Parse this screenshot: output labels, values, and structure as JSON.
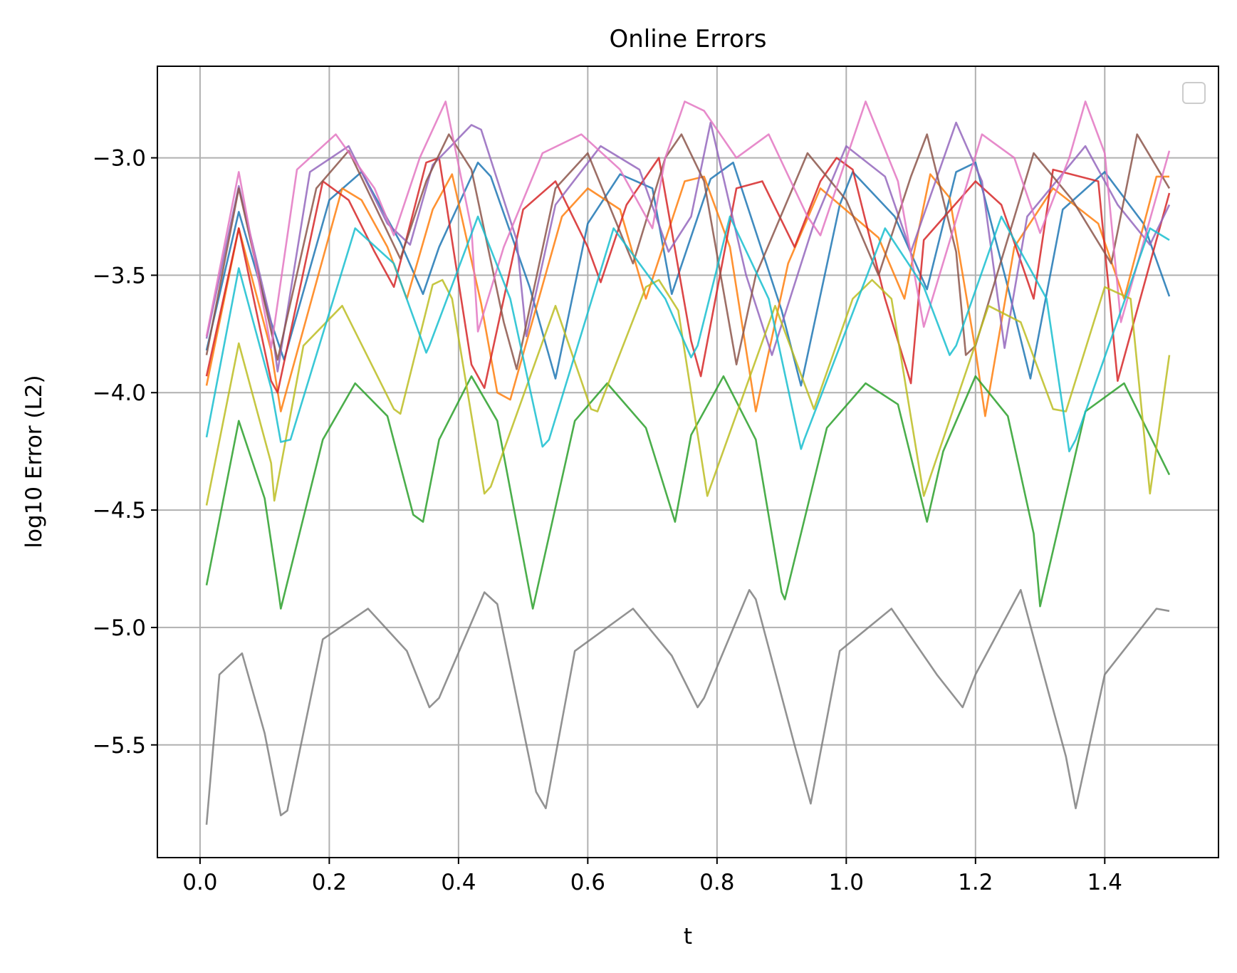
{
  "chart_data": {
    "type": "line",
    "title": "Online Errors",
    "xlabel": "t",
    "ylabel": "log10 Error (L2)",
    "xlim": [
      -0.066,
      1.576
    ],
    "ylim": [
      -5.98,
      -2.61
    ],
    "xticks": [
      0.0,
      0.2,
      0.4,
      0.6,
      0.8,
      1.0,
      1.2,
      1.4
    ],
    "xtick_labels": [
      "0.0",
      "0.2",
      "0.4",
      "0.6",
      "0.8",
      "1.0",
      "1.2",
      "1.4"
    ],
    "yticks": [
      -3.0,
      -3.5,
      -4.0,
      -4.5,
      -5.0,
      -5.5
    ],
    "ytick_labels": [
      "−3.0",
      "−3.5",
      "−4.0",
      "−4.5",
      "−5.0",
      "−5.5"
    ],
    "grid": true,
    "legend": {
      "placement": "top-right",
      "entries": []
    },
    "series": [
      {
        "color": "#1f77b4",
        "x": [
          0.01,
          0.06,
          0.11,
          0.13,
          0.2,
          0.25,
          0.31,
          0.345,
          0.37,
          0.43,
          0.45,
          0.51,
          0.55,
          0.6,
          0.65,
          0.7,
          0.73,
          0.79,
          0.825,
          0.9,
          0.93,
          0.99,
          1.01,
          1.075,
          1.125,
          1.17,
          1.2,
          1.25,
          1.285,
          1.335,
          1.4,
          1.46,
          1.5
        ],
        "y": [
          -3.82,
          -3.23,
          -3.7,
          -3.86,
          -3.18,
          -3.06,
          -3.36,
          -3.58,
          -3.38,
          -3.02,
          -3.08,
          -3.55,
          -3.94,
          -3.28,
          -3.07,
          -3.13,
          -3.58,
          -3.09,
          -3.02,
          -3.65,
          -3.97,
          -3.2,
          -3.06,
          -3.25,
          -3.56,
          -3.06,
          -3.02,
          -3.55,
          -3.94,
          -3.22,
          -3.06,
          -3.28,
          -3.59
        ]
      },
      {
        "color": "#ff7f0e",
        "x": [
          0.01,
          0.06,
          0.11,
          0.125,
          0.22,
          0.25,
          0.29,
          0.32,
          0.36,
          0.39,
          0.435,
          0.46,
          0.48,
          0.56,
          0.6,
          0.65,
          0.69,
          0.75,
          0.78,
          0.82,
          0.86,
          0.91,
          0.96,
          1.05,
          1.09,
          1.13,
          1.16,
          1.2,
          1.215,
          1.26,
          1.32,
          1.39,
          1.43,
          1.48,
          1.5
        ],
        "y": [
          -3.97,
          -3.3,
          -3.82,
          -4.08,
          -3.13,
          -3.18,
          -3.38,
          -3.6,
          -3.22,
          -3.07,
          -3.62,
          -4.0,
          -4.03,
          -3.25,
          -3.13,
          -3.22,
          -3.6,
          -3.1,
          -3.08,
          -3.38,
          -4.08,
          -3.45,
          -3.13,
          -3.34,
          -3.6,
          -3.07,
          -3.17,
          -3.82,
          -4.1,
          -3.38,
          -3.13,
          -3.28,
          -3.6,
          -3.08,
          -3.08
        ]
      },
      {
        "color": "#2ca02c",
        "x": [
          0.01,
          0.06,
          0.1,
          0.12,
          0.125,
          0.19,
          0.24,
          0.29,
          0.33,
          0.345,
          0.37,
          0.42,
          0.46,
          0.51,
          0.515,
          0.58,
          0.63,
          0.69,
          0.735,
          0.76,
          0.81,
          0.86,
          0.9,
          0.905,
          0.97,
          1.03,
          1.08,
          1.125,
          1.15,
          1.2,
          1.25,
          1.29,
          1.3,
          1.37,
          1.43,
          1.5
        ],
        "y": [
          -4.82,
          -4.12,
          -4.45,
          -4.82,
          -4.92,
          -4.2,
          -3.96,
          -4.1,
          -4.52,
          -4.55,
          -4.2,
          -3.93,
          -4.12,
          -4.85,
          -4.92,
          -4.12,
          -3.96,
          -4.15,
          -4.55,
          -4.18,
          -3.93,
          -4.2,
          -4.85,
          -4.88,
          -4.15,
          -3.96,
          -4.05,
          -4.55,
          -4.25,
          -3.93,
          -4.1,
          -4.6,
          -4.91,
          -4.08,
          -3.96,
          -4.35
        ]
      },
      {
        "color": "#d62728",
        "x": [
          0.01,
          0.06,
          0.11,
          0.12,
          0.19,
          0.23,
          0.27,
          0.3,
          0.35,
          0.37,
          0.42,
          0.44,
          0.5,
          0.55,
          0.6,
          0.62,
          0.66,
          0.71,
          0.76,
          0.775,
          0.83,
          0.87,
          0.92,
          0.96,
          0.985,
          1.01,
          1.06,
          1.1,
          1.12,
          1.2,
          1.24,
          1.29,
          1.32,
          1.39,
          1.42,
          1.5
        ],
        "y": [
          -3.93,
          -3.3,
          -3.95,
          -4.0,
          -3.1,
          -3.18,
          -3.4,
          -3.55,
          -3.02,
          -3.0,
          -3.88,
          -3.98,
          -3.22,
          -3.1,
          -3.38,
          -3.53,
          -3.2,
          -3.0,
          -3.78,
          -3.93,
          -3.13,
          -3.1,
          -3.38,
          -3.1,
          -3.0,
          -3.05,
          -3.6,
          -3.96,
          -3.35,
          -3.1,
          -3.2,
          -3.6,
          -3.05,
          -3.1,
          -3.95,
          -3.15
        ]
      },
      {
        "color": "#9467bd",
        "x": [
          0.01,
          0.06,
          0.11,
          0.12,
          0.17,
          0.23,
          0.29,
          0.325,
          0.36,
          0.42,
          0.435,
          0.49,
          0.505,
          0.55,
          0.62,
          0.68,
          0.725,
          0.76,
          0.79,
          0.845,
          0.885,
          0.95,
          1.0,
          1.06,
          1.1,
          1.17,
          1.21,
          1.245,
          1.28,
          1.37,
          1.42,
          1.47,
          1.5
        ],
        "y": [
          -3.77,
          -3.12,
          -3.7,
          -3.91,
          -3.06,
          -2.95,
          -3.28,
          -3.37,
          -3.03,
          -2.86,
          -2.88,
          -3.35,
          -3.76,
          -3.2,
          -2.95,
          -3.05,
          -3.4,
          -3.25,
          -2.85,
          -3.5,
          -3.84,
          -3.28,
          -2.95,
          -3.08,
          -3.4,
          -2.85,
          -3.1,
          -3.81,
          -3.25,
          -2.95,
          -3.2,
          -3.37,
          -3.2
        ]
      },
      {
        "color": "#8c564b",
        "x": [
          0.01,
          0.06,
          0.12,
          0.18,
          0.23,
          0.31,
          0.35,
          0.385,
          0.42,
          0.47,
          0.49,
          0.55,
          0.6,
          0.67,
          0.72,
          0.745,
          0.78,
          0.83,
          0.86,
          0.94,
          1.0,
          1.05,
          1.1,
          1.125,
          1.17,
          1.185,
          1.2,
          1.29,
          1.35,
          1.41,
          1.45,
          1.5
        ],
        "y": [
          -3.84,
          -3.13,
          -3.86,
          -3.13,
          -2.97,
          -3.43,
          -3.1,
          -2.9,
          -3.05,
          -3.7,
          -3.9,
          -3.13,
          -2.98,
          -3.45,
          -3.0,
          -2.9,
          -3.1,
          -3.88,
          -3.5,
          -2.98,
          -3.18,
          -3.5,
          -3.08,
          -2.9,
          -3.4,
          -3.84,
          -3.8,
          -2.98,
          -3.18,
          -3.45,
          -2.9,
          -3.13
        ]
      },
      {
        "color": "#e377c2",
        "x": [
          0.01,
          0.06,
          0.11,
          0.15,
          0.21,
          0.27,
          0.3,
          0.34,
          0.38,
          0.42,
          0.43,
          0.47,
          0.53,
          0.59,
          0.65,
          0.7,
          0.72,
          0.75,
          0.78,
          0.83,
          0.88,
          0.94,
          0.96,
          1.03,
          1.08,
          1.12,
          1.21,
          1.26,
          1.3,
          1.345,
          1.37,
          1.4,
          1.425,
          1.5
        ],
        "y": [
          -3.76,
          -3.06,
          -3.81,
          -3.05,
          -2.9,
          -3.13,
          -3.33,
          -3.0,
          -2.76,
          -3.3,
          -3.74,
          -3.38,
          -2.98,
          -2.9,
          -3.05,
          -3.3,
          -3.0,
          -2.76,
          -2.8,
          -3.0,
          -2.9,
          -3.25,
          -3.33,
          -2.76,
          -3.1,
          -3.72,
          -2.9,
          -3.0,
          -3.32,
          -3.0,
          -2.76,
          -2.98,
          -3.7,
          -2.97
        ]
      },
      {
        "color": "#7f7f7f",
        "x": [
          0.01,
          0.03,
          0.065,
          0.1,
          0.125,
          0.135,
          0.19,
          0.26,
          0.32,
          0.355,
          0.37,
          0.44,
          0.46,
          0.52,
          0.535,
          0.58,
          0.67,
          0.73,
          0.77,
          0.78,
          0.85,
          0.86,
          0.92,
          0.945,
          0.99,
          1.07,
          1.14,
          1.18,
          1.2,
          1.27,
          1.34,
          1.355,
          1.4,
          1.48,
          1.5
        ],
        "y": [
          -5.84,
          -5.2,
          -5.11,
          -5.45,
          -5.8,
          -5.78,
          -5.05,
          -4.92,
          -5.1,
          -5.34,
          -5.3,
          -4.85,
          -4.9,
          -5.7,
          -5.77,
          -5.1,
          -4.92,
          -5.12,
          -5.34,
          -5.3,
          -4.84,
          -4.88,
          -5.5,
          -5.75,
          -5.1,
          -4.92,
          -5.2,
          -5.34,
          -5.2,
          -4.84,
          -5.55,
          -5.77,
          -5.2,
          -4.92,
          -4.93
        ]
      },
      {
        "color": "#bcbd22",
        "x": [
          0.01,
          0.06,
          0.11,
          0.115,
          0.16,
          0.22,
          0.3,
          0.31,
          0.36,
          0.375,
          0.39,
          0.44,
          0.45,
          0.55,
          0.605,
          0.615,
          0.69,
          0.71,
          0.74,
          0.785,
          0.79,
          0.89,
          0.95,
          1.01,
          1.04,
          1.07,
          1.12,
          1.125,
          1.22,
          1.27,
          1.32,
          1.34,
          1.4,
          1.44,
          1.47,
          1.5
        ],
        "y": [
          -4.48,
          -3.79,
          -4.3,
          -4.46,
          -3.8,
          -3.63,
          -4.07,
          -4.09,
          -3.54,
          -3.52,
          -3.6,
          -4.43,
          -4.4,
          -3.63,
          -4.07,
          -4.08,
          -3.55,
          -3.52,
          -3.65,
          -4.44,
          -4.4,
          -3.63,
          -4.07,
          -3.6,
          -3.52,
          -3.6,
          -4.44,
          -4.4,
          -3.63,
          -3.7,
          -4.07,
          -4.08,
          -3.55,
          -3.6,
          -4.43,
          -3.84
        ]
      },
      {
        "color": "#17becf",
        "x": [
          0.01,
          0.06,
          0.11,
          0.125,
          0.14,
          0.24,
          0.3,
          0.35,
          0.355,
          0.43,
          0.48,
          0.53,
          0.54,
          0.64,
          0.72,
          0.76,
          0.77,
          0.82,
          0.88,
          0.93,
          0.935,
          1.06,
          1.12,
          1.16,
          1.17,
          1.24,
          1.31,
          1.345,
          1.355,
          1.47,
          1.5
        ],
        "y": [
          -4.19,
          -3.47,
          -3.98,
          -4.21,
          -4.2,
          -3.3,
          -3.45,
          -3.83,
          -3.8,
          -3.25,
          -3.6,
          -4.23,
          -4.2,
          -3.3,
          -3.6,
          -3.85,
          -3.8,
          -3.25,
          -3.6,
          -4.24,
          -4.2,
          -3.3,
          -3.55,
          -3.84,
          -3.8,
          -3.25,
          -3.6,
          -4.25,
          -4.2,
          -3.3,
          -3.35
        ]
      }
    ]
  }
}
